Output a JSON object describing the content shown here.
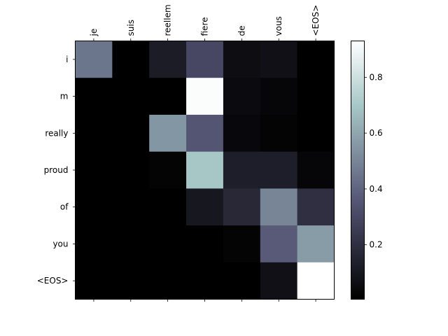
{
  "chart_data": {
    "type": "heatmap",
    "title": "",
    "xlabel": "",
    "ylabel": "",
    "x_labels": [
      "je",
      "suis",
      "reellem",
      "fiere",
      "de",
      "vous",
      "<EOS>"
    ],
    "y_labels": [
      "i",
      "m",
      "really",
      "proud",
      "of",
      "you",
      "<EOS>"
    ],
    "values": [
      [
        0.45,
        0.0,
        0.12,
        0.3,
        0.06,
        0.07,
        0.0
      ],
      [
        0.0,
        0.0,
        0.0,
        0.92,
        0.05,
        0.03,
        0.0
      ],
      [
        0.0,
        0.0,
        0.55,
        0.35,
        0.04,
        0.02,
        0.0
      ],
      [
        0.0,
        0.0,
        0.02,
        0.7,
        0.13,
        0.13,
        0.03
      ],
      [
        0.0,
        0.0,
        0.0,
        0.1,
        0.17,
        0.5,
        0.2
      ],
      [
        0.0,
        0.0,
        0.0,
        0.0,
        0.02,
        0.37,
        0.57
      ],
      [
        0.0,
        0.0,
        0.0,
        0.0,
        0.0,
        0.07,
        0.93
      ]
    ],
    "colormap": "bone",
    "colorbar": {
      "range": [
        0.005,
        0.93
      ],
      "ticks": [
        0.2,
        0.4,
        0.6,
        0.8
      ],
      "tick_labels": [
        "0.2",
        "0.4",
        "0.6",
        "0.8"
      ]
    },
    "grid": false
  }
}
